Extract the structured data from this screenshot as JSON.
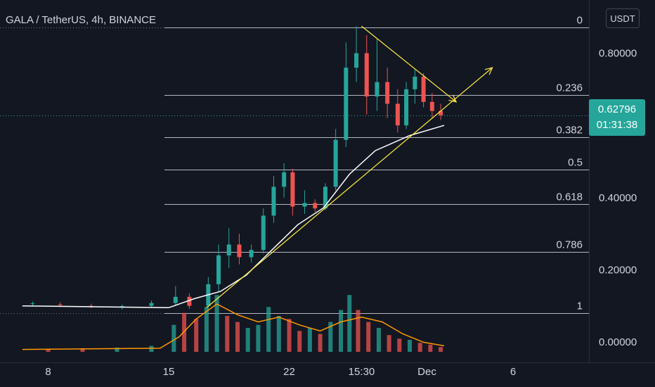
{
  "header": {
    "title": "GALA / TetherUS, 4h, BINANCE",
    "currency": "USDT"
  },
  "price_badge": {
    "price": "0.62796",
    "countdown": "01:31:38",
    "color": "#26a69a"
  },
  "colors": {
    "up": "#26a69a",
    "down": "#ef5350",
    "ma": "#ffffff",
    "vol_ma": "#ff9800",
    "trend": "#ffeb3b",
    "fib": "#d1d4dc",
    "axis_text": "#d1d4dc",
    "bg": "#131722"
  },
  "chart_data": {
    "type": "candlestick",
    "symbol": "GALA / TetherUS",
    "interval": "4h",
    "exchange": "BINANCE",
    "xlabel": "",
    "ylabel": "",
    "grid": false,
    "y_ticks": [
      {
        "value": 0.8,
        "label": "0.80000"
      },
      {
        "value": 0.4,
        "label": "0.40000"
      },
      {
        "value": 0.2,
        "label": "0.20000"
      },
      {
        "value": 0.0,
        "label": "0.00000"
      }
    ],
    "x_ticks": [
      {
        "label": "8",
        "t": 1.0
      },
      {
        "label": "15",
        "t": 8.0
      },
      {
        "label": "22",
        "t": 15.0
      },
      {
        "label": "15:30",
        "t": 19.2
      },
      {
        "label": "Dec",
        "t": 23.0
      },
      {
        "label": "6",
        "t": 28.0
      }
    ],
    "fibonacci": [
      {
        "level": "0",
        "price": 0.872
      },
      {
        "level": "0.236",
        "price": 0.684
      },
      {
        "level": "0.382",
        "price": 0.567
      },
      {
        "level": "0.5",
        "price": 0.477
      },
      {
        "level": "0.618",
        "price": 0.383
      },
      {
        "level": "0.786",
        "price": 0.249
      },
      {
        "level": "1",
        "price": 0.08
      }
    ],
    "last_price": 0.62796,
    "trendlines": [
      {
        "from": {
          "t": 10.2,
          "p": 0.095
        },
        "to": {
          "t": 26.8,
          "p": 0.76
        }
      },
      {
        "from": {
          "t": 19.2,
          "p": 0.875
        },
        "to": {
          "t": 24.7,
          "p": 0.665
        }
      }
    ],
    "moving_average": [
      [
        -0.5,
        0.1
      ],
      [
        8.0,
        0.095
      ],
      [
        9.5,
        0.12
      ],
      [
        11.0,
        0.14
      ],
      [
        12.5,
        0.185
      ],
      [
        14.0,
        0.255
      ],
      [
        15.5,
        0.325
      ],
      [
        17.0,
        0.372
      ],
      [
        18.5,
        0.465
      ],
      [
        20.0,
        0.53
      ],
      [
        22.0,
        0.572
      ],
      [
        24.0,
        0.6
      ]
    ],
    "candles": [
      {
        "t": 0.1,
        "o": 0.105,
        "h": 0.112,
        "l": 0.1,
        "c": 0.107
      },
      {
        "t": 1.7,
        "o": 0.104,
        "h": 0.11,
        "l": 0.097,
        "c": 0.102
      },
      {
        "t": 3.5,
        "o": 0.1,
        "h": 0.106,
        "l": 0.094,
        "c": 0.098
      },
      {
        "t": 5.3,
        "o": 0.096,
        "h": 0.104,
        "l": 0.09,
        "c": 0.099
      },
      {
        "t": 7.0,
        "o": 0.1,
        "h": 0.115,
        "l": 0.095,
        "c": 0.108
      },
      {
        "t": 8.4,
        "o": 0.108,
        "h": 0.155,
        "l": 0.1,
        "c": 0.125
      },
      {
        "t": 9.2,
        "o": 0.125,
        "h": 0.135,
        "l": 0.092,
        "c": 0.1
      },
      {
        "t": 10.3,
        "o": 0.1,
        "h": 0.18,
        "l": 0.095,
        "c": 0.16
      },
      {
        "t": 10.9,
        "o": 0.16,
        "h": 0.27,
        "l": 0.14,
        "c": 0.24
      },
      {
        "t": 11.5,
        "o": 0.24,
        "h": 0.315,
        "l": 0.205,
        "c": 0.27
      },
      {
        "t": 12.1,
        "o": 0.27,
        "h": 0.3,
        "l": 0.215,
        "c": 0.235
      },
      {
        "t": 12.8,
        "o": 0.235,
        "h": 0.27,
        "l": 0.22,
        "c": 0.255
      },
      {
        "t": 13.5,
        "o": 0.255,
        "h": 0.37,
        "l": 0.245,
        "c": 0.35
      },
      {
        "t": 14.1,
        "o": 0.35,
        "h": 0.46,
        "l": 0.33,
        "c": 0.43
      },
      {
        "t": 14.7,
        "o": 0.43,
        "h": 0.495,
        "l": 0.4,
        "c": 0.47
      },
      {
        "t": 15.2,
        "o": 0.47,
        "h": 0.48,
        "l": 0.35,
        "c": 0.375
      },
      {
        "t": 15.9,
        "o": 0.375,
        "h": 0.42,
        "l": 0.355,
        "c": 0.385
      },
      {
        "t": 16.5,
        "o": 0.385,
        "h": 0.395,
        "l": 0.36,
        "c": 0.37
      },
      {
        "t": 17.1,
        "o": 0.37,
        "h": 0.44,
        "l": 0.365,
        "c": 0.43
      },
      {
        "t": 17.7,
        "o": 0.43,
        "h": 0.59,
        "l": 0.42,
        "c": 0.56
      },
      {
        "t": 18.3,
        "o": 0.56,
        "h": 0.83,
        "l": 0.54,
        "c": 0.76
      },
      {
        "t": 18.9,
        "o": 0.76,
        "h": 0.875,
        "l": 0.72,
        "c": 0.8
      },
      {
        "t": 19.5,
        "o": 0.8,
        "h": 0.85,
        "l": 0.63,
        "c": 0.68
      },
      {
        "t": 20.1,
        "o": 0.68,
        "h": 0.84,
        "l": 0.64,
        "c": 0.72
      },
      {
        "t": 20.7,
        "o": 0.72,
        "h": 0.76,
        "l": 0.62,
        "c": 0.66
      },
      {
        "t": 21.3,
        "o": 0.66,
        "h": 0.7,
        "l": 0.58,
        "c": 0.6
      },
      {
        "t": 21.8,
        "o": 0.6,
        "h": 0.72,
        "l": 0.59,
        "c": 0.7
      },
      {
        "t": 22.3,
        "o": 0.7,
        "h": 0.755,
        "l": 0.66,
        "c": 0.735
      },
      {
        "t": 22.8,
        "o": 0.735,
        "h": 0.745,
        "l": 0.65,
        "c": 0.665
      },
      {
        "t": 23.3,
        "o": 0.665,
        "h": 0.69,
        "l": 0.62,
        "c": 0.64
      },
      {
        "t": 23.8,
        "o": 0.64,
        "h": 0.66,
        "l": 0.615,
        "c": 0.628
      }
    ],
    "volume": {
      "axis_max": 1.0,
      "bars": [
        {
          "t": 1.0,
          "v": 0.05,
          "dir": "down"
        },
        {
          "t": 3.0,
          "v": 0.06,
          "dir": "down"
        },
        {
          "t": 5.0,
          "v": 0.07,
          "dir": "up"
        },
        {
          "t": 7.0,
          "v": 0.1,
          "dir": "up"
        },
        {
          "t": 8.3,
          "v": 0.45,
          "dir": "up"
        },
        {
          "t": 8.9,
          "v": 0.65,
          "dir": "down"
        },
        {
          "t": 9.6,
          "v": 0.55,
          "dir": "down"
        },
        {
          "t": 10.2,
          "v": 0.75,
          "dir": "up"
        },
        {
          "t": 10.8,
          "v": 0.95,
          "dir": "up"
        },
        {
          "t": 11.4,
          "v": 0.6,
          "dir": "down"
        },
        {
          "t": 12.0,
          "v": 0.5,
          "dir": "down"
        },
        {
          "t": 12.6,
          "v": 0.4,
          "dir": "up"
        },
        {
          "t": 13.2,
          "v": 0.45,
          "dir": "up"
        },
        {
          "t": 13.8,
          "v": 0.75,
          "dir": "up"
        },
        {
          "t": 14.4,
          "v": 0.6,
          "dir": "up"
        },
        {
          "t": 15.0,
          "v": 0.55,
          "dir": "down"
        },
        {
          "t": 15.6,
          "v": 0.35,
          "dir": "down"
        },
        {
          "t": 16.2,
          "v": 0.4,
          "dir": "up"
        },
        {
          "t": 16.8,
          "v": 0.3,
          "dir": "down"
        },
        {
          "t": 17.4,
          "v": 0.5,
          "dir": "up"
        },
        {
          "t": 18.0,
          "v": 0.7,
          "dir": "up"
        },
        {
          "t": 18.5,
          "v": 0.95,
          "dir": "up"
        },
        {
          "t": 19.0,
          "v": 0.7,
          "dir": "down"
        },
        {
          "t": 19.6,
          "v": 0.5,
          "dir": "down"
        },
        {
          "t": 20.2,
          "v": 0.4,
          "dir": "up"
        },
        {
          "t": 20.8,
          "v": 0.28,
          "dir": "down"
        },
        {
          "t": 21.4,
          "v": 0.22,
          "dir": "down"
        },
        {
          "t": 22.0,
          "v": 0.2,
          "dir": "up"
        },
        {
          "t": 22.6,
          "v": 0.15,
          "dir": "down"
        },
        {
          "t": 23.2,
          "v": 0.12,
          "dir": "down"
        },
        {
          "t": 23.8,
          "v": 0.08,
          "dir": "down"
        }
      ],
      "moving_average": [
        [
          -0.5,
          0.04
        ],
        [
          7.5,
          0.06
        ],
        [
          8.6,
          0.25
        ],
        [
          9.6,
          0.55
        ],
        [
          10.8,
          0.8
        ],
        [
          12.0,
          0.62
        ],
        [
          13.2,
          0.5
        ],
        [
          14.4,
          0.58
        ],
        [
          15.6,
          0.45
        ],
        [
          16.8,
          0.35
        ],
        [
          18.0,
          0.5
        ],
        [
          19.2,
          0.58
        ],
        [
          20.4,
          0.5
        ],
        [
          21.6,
          0.3
        ],
        [
          22.8,
          0.16
        ],
        [
          24.0,
          0.1
        ]
      ]
    }
  }
}
